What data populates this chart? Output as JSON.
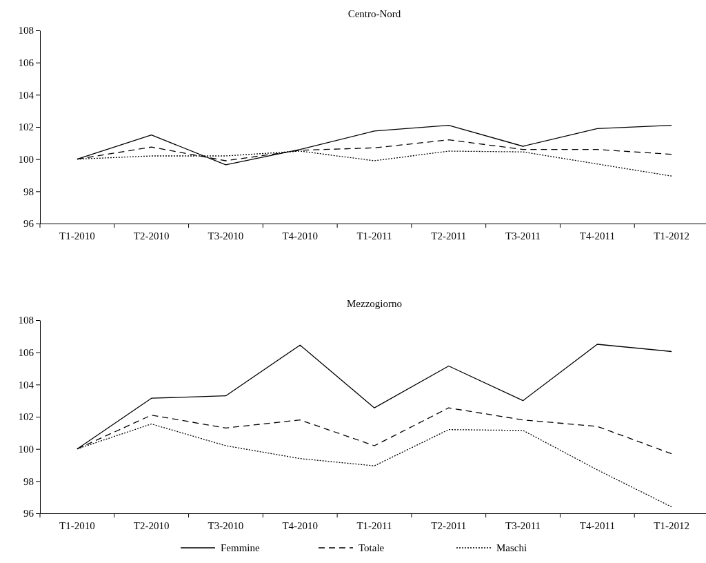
{
  "chart_data": [
    {
      "type": "line",
      "title": "Centro-Nord",
      "categories": [
        "T1-2010",
        "T2-2010",
        "T3-2010",
        "T4-2010",
        "T1-2011",
        "T2-2011",
        "T3-2011",
        "T4-2011",
        "T1-2012"
      ],
      "ylim": [
        96,
        108
      ],
      "yticks": [
        96,
        98,
        100,
        102,
        104,
        106,
        108
      ],
      "grid": false,
      "legend": false,
      "series": [
        {
          "color": "#000000",
          "line_style": "solid",
          "values": [
            100,
            101.5,
            99.65,
            100.6,
            101.75,
            102.1,
            100.8,
            101.9,
            102.1
          ]
        },
        {
          "color": "#000000",
          "line_style": "dashed",
          "values": [
            100,
            100.75,
            99.9,
            100.55,
            100.7,
            101.2,
            100.6,
            100.6,
            100.3
          ]
        },
        {
          "color": "#000000",
          "line_style": "dotted",
          "values": [
            100,
            100.2,
            100.2,
            100.5,
            99.9,
            100.5,
            100.45,
            99.7,
            98.95
          ]
        }
      ]
    },
    {
      "type": "line",
      "title": "Mezzogiorno",
      "categories": [
        "T1-2010",
        "T2-2010",
        "T3-2010",
        "T4-2010",
        "T1-2011",
        "T2-2011",
        "T3-2011",
        "T4-2011",
        "T1-2012"
      ],
      "ylim": [
        96,
        108
      ],
      "yticks": [
        96,
        98,
        100,
        102,
        104,
        106,
        108
      ],
      "grid": false,
      "legend": "bottom",
      "series": [
        {
          "name": "Femmine",
          "color": "#000000",
          "line_style": "solid",
          "values": [
            100,
            103.15,
            103.3,
            106.45,
            102.55,
            105.15,
            103.0,
            106.5,
            106.05
          ]
        },
        {
          "name": "Totale",
          "color": "#000000",
          "line_style": "dashed",
          "values": [
            100,
            102.1,
            101.3,
            101.8,
            100.2,
            102.55,
            101.8,
            101.4,
            99.7
          ]
        },
        {
          "name": "Maschi",
          "color": "#000000",
          "line_style": "dotted",
          "values": [
            100,
            101.55,
            100.2,
            99.4,
            98.95,
            101.2,
            101.15,
            98.7,
            96.4
          ]
        }
      ]
    }
  ]
}
